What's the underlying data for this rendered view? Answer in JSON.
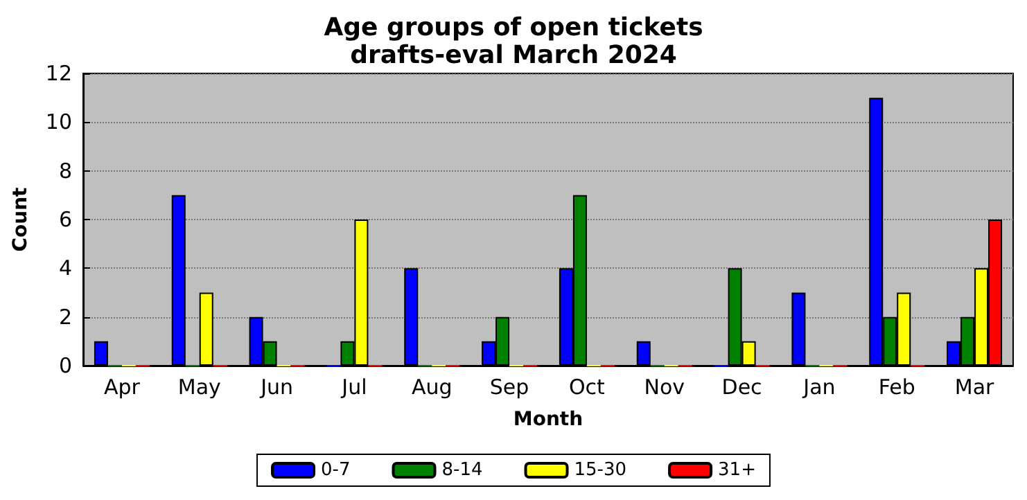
{
  "chart_data": {
    "type": "bar",
    "title": "Age groups of open tickets",
    "subtitle": "drafts-eval March 2024",
    "xlabel": "Month",
    "ylabel": "Count",
    "categories": [
      "Apr",
      "May",
      "Jun",
      "Jul",
      "Aug",
      "Sep",
      "Oct",
      "Nov",
      "Dec",
      "Jan",
      "Feb",
      "Mar"
    ],
    "series": [
      {
        "name": "0-7",
        "color": "#0000ff",
        "values": [
          1,
          7,
          2,
          0,
          4,
          1,
          4,
          1,
          0,
          3,
          11,
          1
        ]
      },
      {
        "name": "8-14",
        "color": "#008000",
        "values": [
          0,
          0,
          1,
          1,
          0,
          2,
          7,
          0,
          4,
          0,
          2,
          2
        ]
      },
      {
        "name": "15-30",
        "color": "#ffff00",
        "values": [
          0,
          3,
          0,
          6,
          0,
          0,
          0,
          0,
          1,
          0,
          3,
          4
        ]
      },
      {
        "name": "31+",
        "color": "#ff0000",
        "values": [
          0,
          0,
          0,
          0,
          0,
          0,
          0,
          0,
          0,
          0,
          0,
          6
        ]
      }
    ],
    "ylim": [
      0,
      12
    ],
    "yticks": [
      0,
      2,
      4,
      6,
      8,
      10,
      12
    ],
    "grid": "y",
    "legend": "bottom"
  }
}
